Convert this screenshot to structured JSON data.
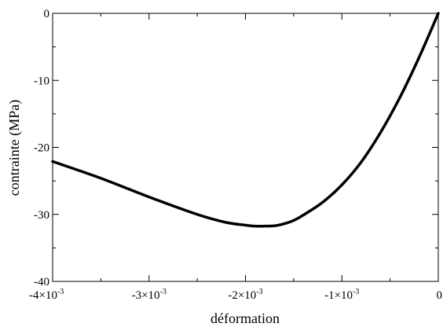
{
  "chart_data": {
    "type": "line",
    "title": "",
    "xlabel": "déformation",
    "ylabel": "contrainte (MPa)",
    "xlim": [
      -0.004,
      0
    ],
    "ylim": [
      -40,
      0
    ],
    "grid": false,
    "legend": "none",
    "line_color": "#000000",
    "x_ticks": [
      {
        "value": -0.004,
        "mantissa": "-4×10",
        "exp": "-3"
      },
      {
        "value": -0.003,
        "mantissa": "-3×10",
        "exp": "-3"
      },
      {
        "value": -0.002,
        "mantissa": "-2×10",
        "exp": "-3"
      },
      {
        "value": -0.001,
        "mantissa": "-1×10",
        "exp": "-3"
      },
      {
        "value": 0,
        "mantissa": "0",
        "exp": ""
      }
    ],
    "y_ticks": [
      {
        "value": 0,
        "label": "0"
      },
      {
        "value": -10,
        "label": "-10"
      },
      {
        "value": -20,
        "label": "-20"
      },
      {
        "value": -30,
        "label": "-30"
      },
      {
        "value": -40,
        "label": "-40"
      }
    ],
    "series": [
      {
        "x": [
          -0.004,
          -0.0035,
          -0.003,
          -0.0025,
          -0.0022,
          -0.002,
          -0.0019,
          -0.0018,
          -0.0017,
          -0.0016,
          -0.0015,
          -0.0014,
          -0.0012,
          -0.001,
          -0.0008,
          -0.0006,
          -0.0004,
          -0.0002,
          0
        ],
        "y": [
          -22.1,
          -24.6,
          -27.4,
          -30.0,
          -31.2,
          -31.6,
          -31.75,
          -31.75,
          -31.7,
          -31.4,
          -30.9,
          -30.1,
          -28.2,
          -25.6,
          -22.2,
          -17.8,
          -12.6,
          -6.6,
          0
        ]
      }
    ]
  }
}
